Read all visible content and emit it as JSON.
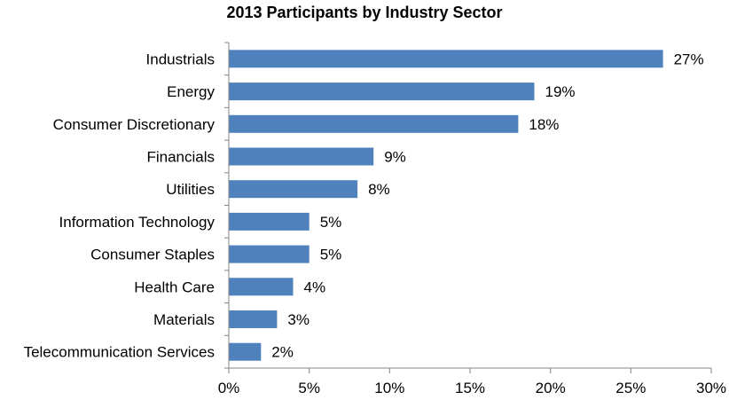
{
  "chart_data": {
    "type": "bar",
    "orientation": "horizontal",
    "title": "2013 Participants by Industry Sector",
    "categories": [
      "Industrials",
      "Energy",
      "Consumer Discretionary",
      "Financials",
      "Utilities",
      "Information Technology",
      "Consumer Staples",
      "Health Care",
      "Materials",
      "Telecommunication Services"
    ],
    "values": [
      27,
      19,
      18,
      9,
      8,
      5,
      5,
      4,
      3,
      2
    ],
    "data_labels": [
      "27%",
      "19%",
      "18%",
      "9%",
      "8%",
      "5%",
      "5%",
      "4%",
      "3%",
      "2%"
    ],
    "xlim": [
      0,
      30
    ],
    "x_ticks": [
      0,
      5,
      10,
      15,
      20,
      25,
      30
    ],
    "x_tick_labels": [
      "0%",
      "5%",
      "10%",
      "15%",
      "20%",
      "25%",
      "30%"
    ],
    "xlabel": "",
    "ylabel": "",
    "grid": false,
    "legend": "none",
    "colors": {
      "bar": "#4f81bd",
      "axis": "#868686",
      "text": "#000000"
    }
  }
}
